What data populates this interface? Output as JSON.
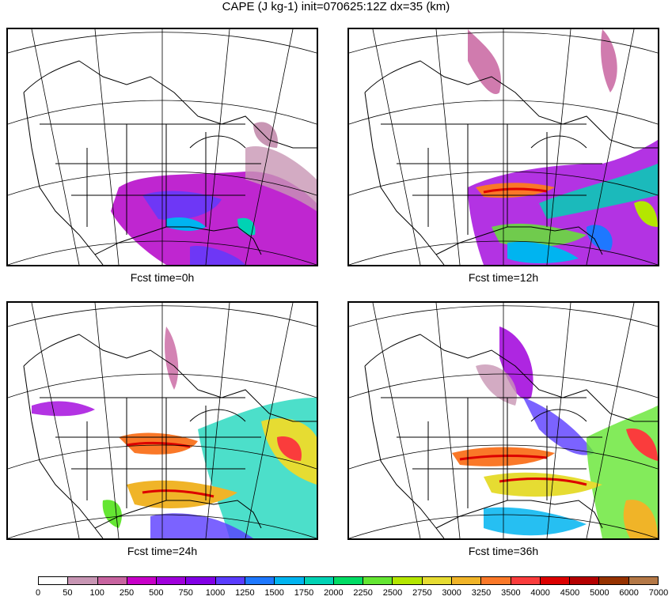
{
  "title": "CAPE (J kg-1) init=070625:12Z dx=35 (km)",
  "panels": [
    {
      "caption": "Fcst time=0h"
    },
    {
      "caption": "Fcst time=12h"
    },
    {
      "caption": "Fcst time=24h"
    },
    {
      "caption": "Fcst time=36h"
    }
  ],
  "colorbar": {
    "ticks": [
      "0",
      "50",
      "100",
      "250",
      "500",
      "750",
      "1000",
      "1250",
      "1500",
      "1750",
      "2000",
      "2250",
      "2500",
      "2750",
      "3000",
      "3250",
      "3500",
      "4000",
      "4500",
      "5000",
      "6000",
      "7000"
    ],
    "colors": [
      "#ffffff",
      "#c896b4",
      "#c864a0",
      "#c800c8",
      "#a000dc",
      "#8200e6",
      "#5a3cff",
      "#1e78ff",
      "#00b4f0",
      "#00d2b4",
      "#00dc64",
      "#64e632",
      "#b4e600",
      "#e6dc32",
      "#f0b428",
      "#fa7828",
      "#fa3c3c",
      "#dc0000",
      "#b40000",
      "#963200",
      "#b47846"
    ]
  }
}
